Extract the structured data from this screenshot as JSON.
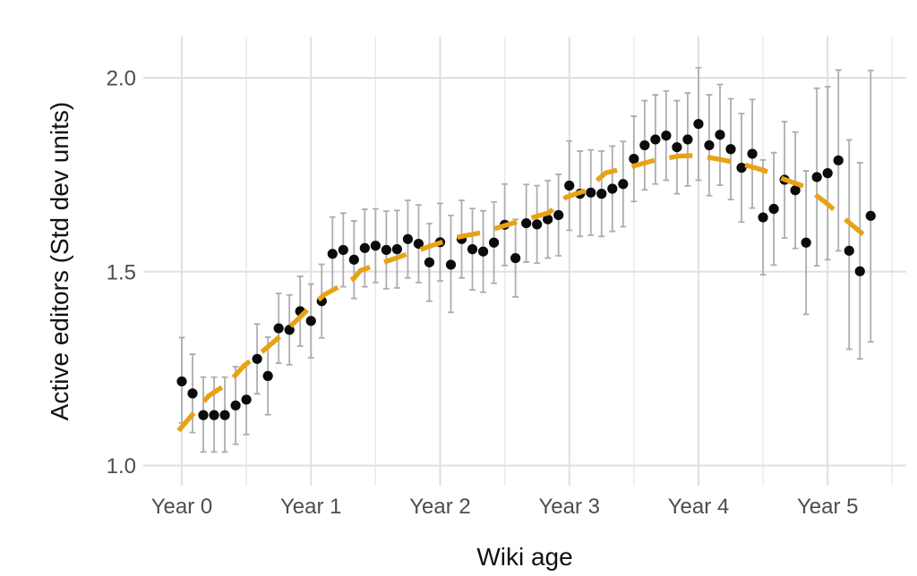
{
  "chart_data": {
    "type": "scatter",
    "title": "",
    "xlabel": "Wiki age",
    "ylabel": "Active editors (Std dev units)",
    "x_tick_labels": [
      "Year 0",
      "Year 1",
      "Year 2",
      "Year 3",
      "Year 4",
      "Year 5"
    ],
    "x_tick_months": [
      0,
      12,
      24,
      36,
      48,
      60
    ],
    "x_minor_tick_months": [
      6,
      18,
      30,
      42,
      54,
      66
    ],
    "y_tick_labels": [
      "1.0",
      "1.5",
      "2.0"
    ],
    "y_ticks": [
      1.0,
      1.5,
      2.0
    ],
    "xlim_months": [
      -3.6,
      67.3
    ],
    "ylim": [
      0.948,
      2.106
    ],
    "grid": "horizontal major lines; vertical major and minor (half-year) lines; no axis ticks; white background",
    "legend": "none",
    "n_points": 65,
    "point_format": [
      "month",
      "value",
      "ci_low",
      "ci_high"
    ],
    "points": [
      [
        0,
        1.217,
        1.11,
        1.33
      ],
      [
        1,
        1.186,
        1.085,
        1.287
      ],
      [
        2,
        1.13,
        1.035,
        1.228
      ],
      [
        3,
        1.13,
        1.035,
        1.228
      ],
      [
        4,
        1.13,
        1.035,
        1.228
      ],
      [
        5,
        1.155,
        1.055,
        1.255
      ],
      [
        6,
        1.17,
        1.08,
        1.262
      ],
      [
        7,
        1.275,
        1.185,
        1.365
      ],
      [
        8,
        1.231,
        1.131,
        1.331
      ],
      [
        9,
        1.354,
        1.264,
        1.444
      ],
      [
        10,
        1.35,
        1.26,
        1.44
      ],
      [
        11,
        1.398,
        1.308,
        1.488
      ],
      [
        12,
        1.373,
        1.278,
        1.468
      ],
      [
        13,
        1.424,
        1.329,
        1.519
      ],
      [
        14,
        1.546,
        1.451,
        1.641
      ],
      [
        15,
        1.556,
        1.461,
        1.651
      ],
      [
        16,
        1.531,
        1.431,
        1.631
      ],
      [
        17,
        1.561,
        1.461,
        1.661
      ],
      [
        18,
        1.567,
        1.472,
        1.662
      ],
      [
        19,
        1.556,
        1.456,
        1.656
      ],
      [
        20,
        1.558,
        1.458,
        1.658
      ],
      [
        21,
        1.584,
        1.484,
        1.684
      ],
      [
        22,
        1.572,
        1.472,
        1.672
      ],
      [
        23,
        1.524,
        1.424,
        1.624
      ],
      [
        24,
        1.576,
        1.476,
        1.676
      ],
      [
        25,
        1.518,
        1.395,
        1.645
      ],
      [
        26,
        1.584,
        1.484,
        1.684
      ],
      [
        27,
        1.558,
        1.453,
        1.663
      ],
      [
        28,
        1.552,
        1.447,
        1.657
      ],
      [
        29,
        1.575,
        1.47,
        1.68
      ],
      [
        30,
        1.621,
        1.516,
        1.726
      ],
      [
        31,
        1.535,
        1.435,
        1.635
      ],
      [
        32,
        1.625,
        1.525,
        1.725
      ],
      [
        33,
        1.622,
        1.522,
        1.722
      ],
      [
        34,
        1.635,
        1.535,
        1.735
      ],
      [
        35,
        1.646,
        1.541,
        1.751
      ],
      [
        36,
        1.722,
        1.607,
        1.837
      ],
      [
        37,
        1.701,
        1.591,
        1.811
      ],
      [
        38,
        1.704,
        1.594,
        1.814
      ],
      [
        39,
        1.701,
        1.591,
        1.811
      ],
      [
        40,
        1.714,
        1.604,
        1.824
      ],
      [
        41,
        1.726,
        1.616,
        1.836
      ],
      [
        42,
        1.791,
        1.681,
        1.901
      ],
      [
        43,
        1.826,
        1.711,
        1.941
      ],
      [
        44,
        1.841,
        1.726,
        1.956
      ],
      [
        45,
        1.851,
        1.736,
        1.966
      ],
      [
        46,
        1.821,
        1.701,
        1.941
      ],
      [
        47,
        1.841,
        1.721,
        1.961
      ],
      [
        48,
        1.881,
        1.736,
        2.026
      ],
      [
        49,
        1.826,
        1.696,
        1.956
      ],
      [
        50,
        1.853,
        1.723,
        1.983
      ],
      [
        51,
        1.816,
        1.686,
        1.946
      ],
      [
        52,
        1.768,
        1.628,
        1.908
      ],
      [
        53,
        1.804,
        1.664,
        1.944
      ],
      [
        54,
        1.64,
        1.492,
        1.788
      ],
      [
        55,
        1.662,
        1.517,
        1.807
      ],
      [
        56,
        1.737,
        1.587,
        1.887
      ],
      [
        57,
        1.71,
        1.56,
        1.86
      ],
      [
        58,
        1.575,
        1.39,
        1.76
      ],
      [
        59,
        1.744,
        1.515,
        1.973
      ],
      [
        60,
        1.754,
        1.531,
        1.977
      ],
      [
        61,
        1.787,
        1.554,
        2.02
      ],
      [
        62,
        1.554,
        1.3,
        1.84
      ],
      [
        63,
        1.501,
        1.275,
        1.781
      ],
      [
        64,
        1.644,
        1.319,
        2.019
      ]
    ],
    "trend_format": [
      "month",
      "value"
    ],
    "trend": [
      [
        -0.3,
        1.09
      ],
      [
        2.5,
        1.18
      ],
      [
        4.3,
        1.212
      ],
      [
        5.8,
        1.258
      ],
      [
        7.4,
        1.292
      ],
      [
        9.0,
        1.33
      ],
      [
        12.2,
        1.415
      ],
      [
        13.2,
        1.44
      ],
      [
        16.0,
        1.483
      ],
      [
        16.6,
        1.503
      ],
      [
        20.4,
        1.54
      ],
      [
        23.6,
        1.571
      ],
      [
        25.8,
        1.59
      ],
      [
        27.9,
        1.601
      ],
      [
        30.0,
        1.619
      ],
      [
        31.6,
        1.632
      ],
      [
        34.1,
        1.652
      ],
      [
        35.7,
        1.692
      ],
      [
        37.4,
        1.708
      ],
      [
        39.4,
        1.755
      ],
      [
        41.4,
        1.768
      ],
      [
        43.6,
        1.785
      ],
      [
        46.1,
        1.798
      ],
      [
        47.8,
        1.8
      ],
      [
        49.9,
        1.79
      ],
      [
        51.9,
        1.779
      ],
      [
        54.1,
        1.761
      ],
      [
        55.7,
        1.741
      ],
      [
        57.8,
        1.72
      ],
      [
        59.8,
        1.679
      ],
      [
        61.3,
        1.643
      ],
      [
        63.1,
        1.601
      ],
      [
        64.2,
        1.58
      ]
    ],
    "colors": {
      "point": "#0b0b0b",
      "error_bar": "#adadad",
      "trend": "#E8A215",
      "grid_major": "#e0e0e0",
      "grid_minor": "#eaeaea",
      "tick_label": "#4d4d4d",
      "axis_title": "#111111",
      "background": "#ffffff"
    }
  }
}
